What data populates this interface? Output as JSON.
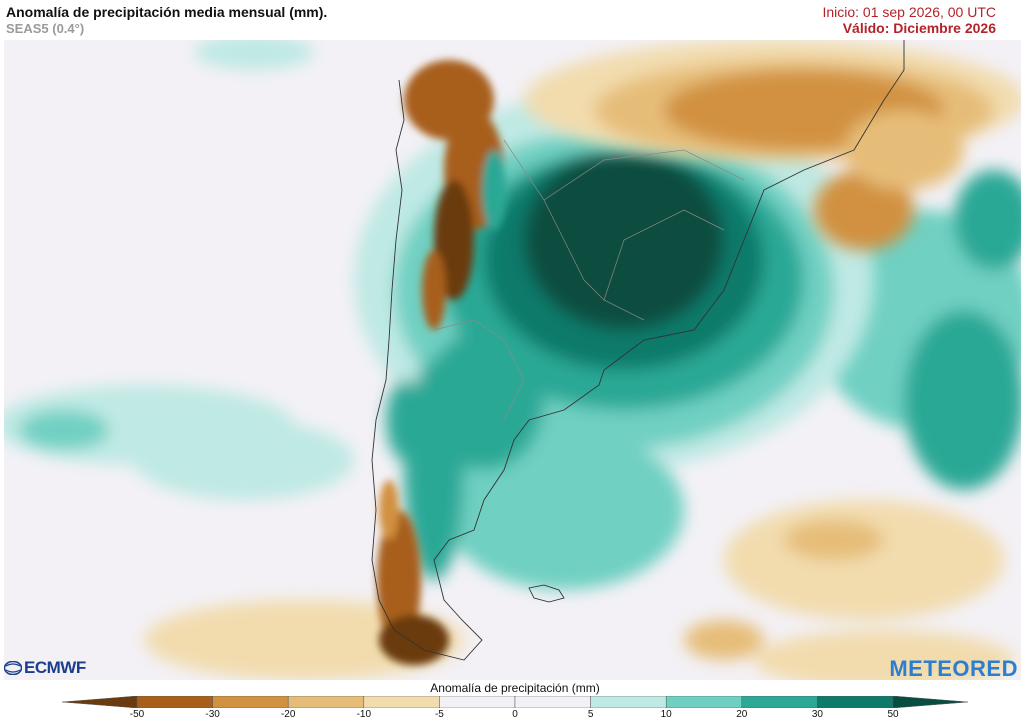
{
  "header": {
    "title": "Anomalía de precipitación media mensual (mm).",
    "subtitle": "SEAS5 (0.4°)",
    "init": "Inicio: 01 sep 2026, 00 UTC",
    "valid": "Válido: Diciembre 2026"
  },
  "logos": {
    "left": "ECMWF",
    "right": "METEORED"
  },
  "legend": {
    "title": "Anomalía de precipitación (mm)",
    "ticks": [
      "-50",
      "-30",
      "-20",
      "-10",
      "-5",
      "0",
      "5",
      "10",
      "20",
      "30",
      "50"
    ],
    "colors": [
      "#6b3a0d",
      "#a85f1a",
      "#d19140",
      "#e6bd78",
      "#f2dcae",
      "#f3f1f6",
      "#f3f1f6",
      "#bfe9e4",
      "#6fd0c2",
      "#2ca896",
      "#0e7a6a",
      "#074d40"
    ]
  },
  "icons": {
    "ecmwf": "ecmwf-logo-icon"
  }
}
